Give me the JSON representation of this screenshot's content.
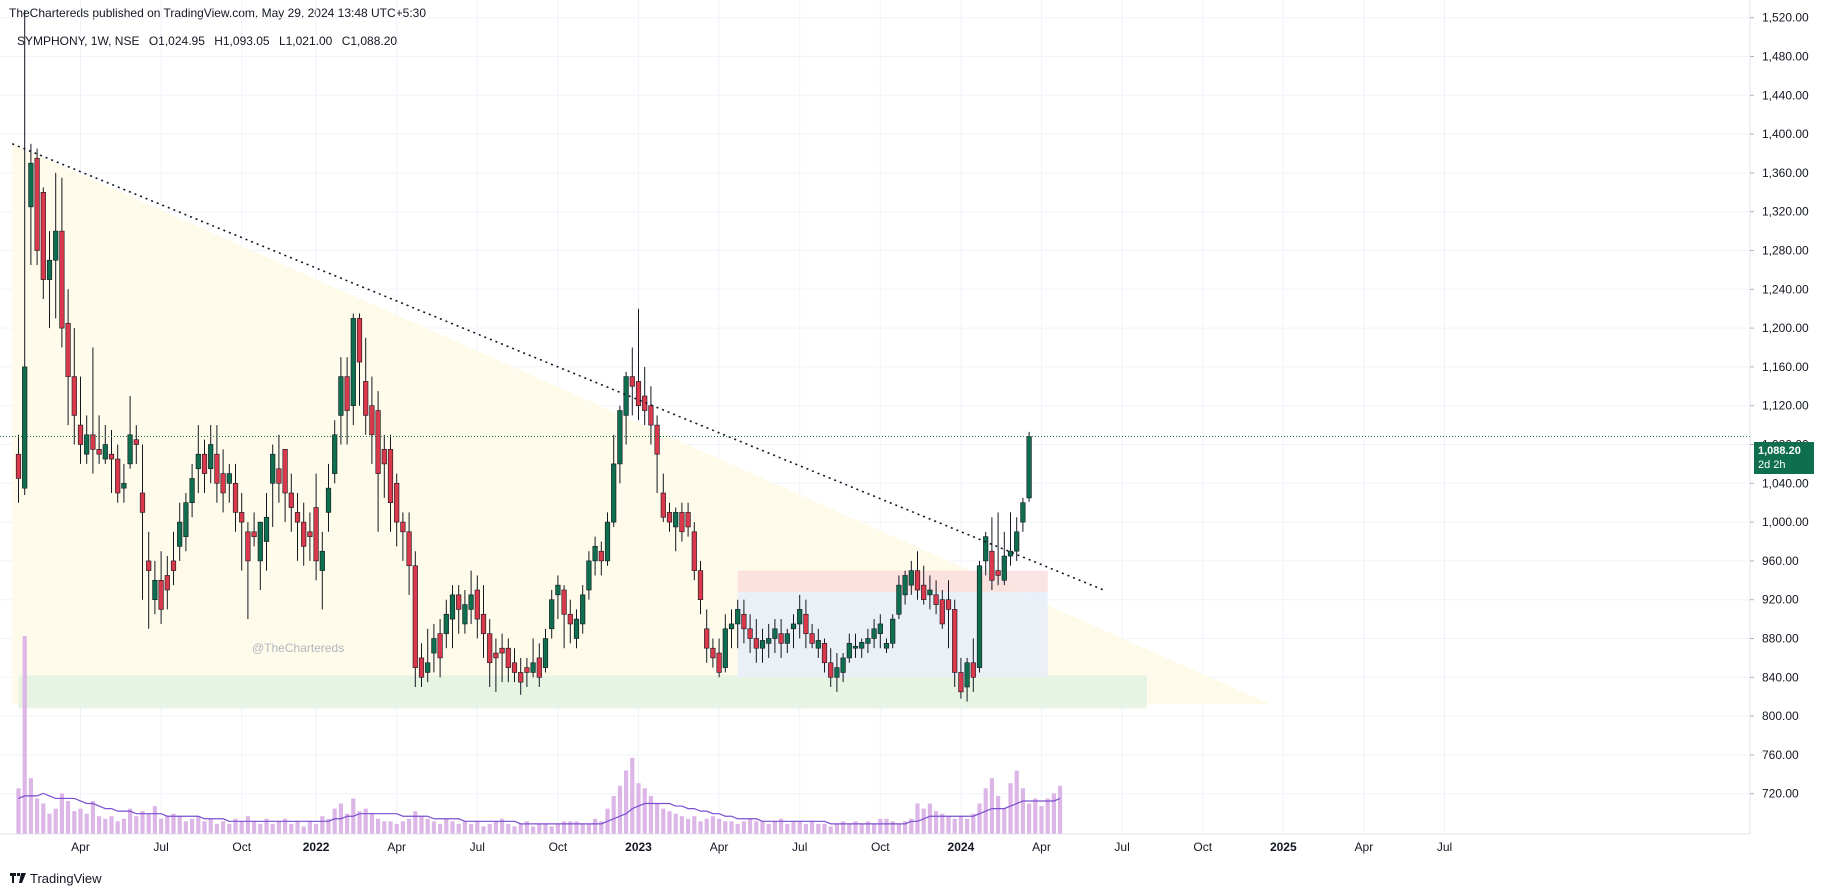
{
  "header": {
    "publisher_line": "TheChartereds published on TradingView.com, May 29, 2024 13:48 UTC+5:30"
  },
  "legend": {
    "symbol": "SYMPHONY, 1W, NSE",
    "open": "O1,024.95",
    "high": "H1,093.05",
    "low": "L1,021.00",
    "close": "C1,088.20"
  },
  "watermark": "@TheChartereds",
  "last_price": {
    "value": "1,088.20",
    "countdown": "2d 2h"
  },
  "footer": {
    "brand": "TradingView"
  },
  "colors": {
    "up": "#0f6e4e",
    "down": "#d9394b",
    "wick": "#131722",
    "volume": "#dcb6e6",
    "volume_ma": "#7b4fcf",
    "zone_green": "#e3f2e2",
    "zone_blue": "#e8ecf8",
    "zone_red": "#fadcdc",
    "triangle_fill": "#fffbeb",
    "grid": "#f0f3fa",
    "last_line": "#0f6e4e"
  },
  "chart_data": {
    "type": "candlestick",
    "symbol": "SYMPHONY",
    "interval": "1W",
    "exchange": "NSE",
    "y_axis": {
      "ticks": [
        "720.00",
        "760.00",
        "800.00",
        "840.00",
        "880.00",
        "920.00",
        "960.00",
        "1,000.00",
        "1,040.00",
        "1,080.00",
        "1,120.00",
        "1,160.00",
        "1,200.00",
        "1,240.00",
        "1,280.00",
        "1,320.00",
        "1,360.00",
        "1,400.00",
        "1,440.00",
        "1,480.00",
        "1,520.00"
      ],
      "range": [
        705,
        1528
      ]
    },
    "x_axis": {
      "labels": [
        {
          "text": "Apr",
          "w": 10
        },
        {
          "text": "Jul",
          "w": 23
        },
        {
          "text": "Oct",
          "w": 36
        },
        {
          "text": "2022",
          "w": 48
        },
        {
          "text": "Apr",
          "w": 61
        },
        {
          "text": "Jul",
          "w": 74
        },
        {
          "text": "Oct",
          "w": 87
        },
        {
          "text": "2023",
          "w": 100
        },
        {
          "text": "Apr",
          "w": 113
        },
        {
          "text": "Jul",
          "w": 126
        },
        {
          "text": "Oct",
          "w": 139
        },
        {
          "text": "2024",
          "w": 152
        },
        {
          "text": "Apr",
          "w": 165
        },
        {
          "text": "Jul",
          "w": 178
        },
        {
          "text": "Oct",
          "w": 191
        },
        {
          "text": "2025",
          "w": 204
        },
        {
          "text": "Apr",
          "w": 217
        },
        {
          "text": "Jul",
          "w": 230
        }
      ],
      "year_labels": [
        "2022",
        "2023",
        "2024",
        "2025"
      ]
    },
    "candles": [
      [
        1070,
        1090,
        1020,
        1045
      ],
      [
        1035,
        1528,
        1028,
        1160
      ],
      [
        1325,
        1390,
        1265,
        1370
      ],
      [
        1375,
        1385,
        1265,
        1280
      ],
      [
        1340,
        1345,
        1230,
        1250
      ],
      [
        1250,
        1300,
        1200,
        1270
      ],
      [
        1270,
        1360,
        1210,
        1300
      ],
      [
        1300,
        1355,
        1180,
        1200
      ],
      [
        1205,
        1240,
        1100,
        1150
      ],
      [
        1150,
        1200,
        1080,
        1110
      ],
      [
        1100,
        1150,
        1060,
        1080
      ],
      [
        1070,
        1110,
        1060,
        1090
      ],
      [
        1090,
        1180,
        1050,
        1075
      ],
      [
        1075,
        1110,
        1060,
        1070
      ],
      [
        1065,
        1100,
        1060,
        1080
      ],
      [
        1070,
        1095,
        1030,
        1065
      ],
      [
        1065,
        1080,
        1020,
        1030
      ],
      [
        1035,
        1060,
        1020,
        1040
      ],
      [
        1060,
        1130,
        1055,
        1090
      ],
      [
        1085,
        1100,
        1060,
        1080
      ],
      [
        1030,
        1080,
        920,
        1010
      ],
      [
        960,
        990,
        890,
        950
      ],
      [
        920,
        960,
        905,
        940
      ],
      [
        940,
        970,
        895,
        910
      ],
      [
        945,
        965,
        910,
        930
      ],
      [
        960,
        990,
        935,
        950
      ],
      [
        975,
        1020,
        960,
        1000
      ],
      [
        985,
        1030,
        970,
        1020
      ],
      [
        1020,
        1060,
        1005,
        1045
      ],
      [
        1055,
        1100,
        1030,
        1070
      ],
      [
        1070,
        1085,
        1030,
        1050
      ],
      [
        1055,
        1100,
        1040,
        1080
      ],
      [
        1070,
        1100,
        1020,
        1040
      ],
      [
        1050,
        1075,
        1010,
        1030
      ],
      [
        1040,
        1060,
        1020,
        1050
      ],
      [
        1040,
        1060,
        990,
        1010
      ],
      [
        1010,
        1030,
        950,
        1000
      ],
      [
        990,
        1000,
        900,
        960
      ],
      [
        990,
        1010,
        975,
        985
      ],
      [
        960,
        1000,
        930,
        1000
      ],
      [
        980,
        1030,
        950,
        1005
      ],
      [
        1040,
        1080,
        995,
        1070
      ],
      [
        1055,
        1090,
        1020,
        1040
      ],
      [
        1075,
        1075,
        1000,
        1030
      ],
      [
        1030,
        1050,
        990,
        1015
      ],
      [
        1010,
        1030,
        960,
        1000
      ],
      [
        1000,
        1020,
        955,
        975
      ],
      [
        990,
        1010,
        960,
        985
      ],
      [
        1015,
        1050,
        940,
        960
      ],
      [
        950,
        990,
        910,
        970
      ],
      [
        1010,
        1060,
        990,
        1035
      ],
      [
        1050,
        1105,
        1040,
        1090
      ],
      [
        1110,
        1170,
        1080,
        1150
      ],
      [
        1150,
        1170,
        1080,
        1115
      ],
      [
        1120,
        1215,
        1100,
        1210
      ],
      [
        1210,
        1215,
        1120,
        1165
      ],
      [
        1145,
        1190,
        1090,
        1110
      ],
      [
        1120,
        1150,
        1060,
        1090
      ],
      [
        1115,
        1135,
        990,
        1050
      ],
      [
        1075,
        1090,
        1025,
        1060
      ],
      [
        1075,
        1090,
        990,
        1020
      ],
      [
        1040,
        1050,
        975,
        1000
      ],
      [
        1000,
        1010,
        960,
        990
      ],
      [
        990,
        1010,
        925,
        955
      ],
      [
        955,
        970,
        830,
        850
      ],
      [
        860,
        875,
        830,
        840
      ],
      [
        845,
        890,
        835,
        855
      ],
      [
        865,
        895,
        845,
        880
      ],
      [
        885,
        900,
        840,
        860
      ],
      [
        885,
        920,
        870,
        905
      ],
      [
        900,
        935,
        870,
        925
      ],
      [
        925,
        935,
        885,
        910
      ],
      [
        895,
        930,
        885,
        915
      ],
      [
        910,
        950,
        895,
        925
      ],
      [
        930,
        945,
        880,
        900
      ],
      [
        905,
        935,
        860,
        885
      ],
      [
        885,
        900,
        830,
        855
      ],
      [
        865,
        880,
        825,
        860
      ],
      [
        870,
        885,
        835,
        865
      ],
      [
        870,
        880,
        835,
        850
      ],
      [
        855,
        870,
        835,
        845
      ],
      [
        845,
        860,
        822,
        835
      ],
      [
        850,
        860,
        830,
        845
      ],
      [
        845,
        880,
        840,
        855
      ],
      [
        860,
        875,
        830,
        840
      ],
      [
        850,
        890,
        845,
        880
      ],
      [
        890,
        930,
        880,
        920
      ],
      [
        925,
        945,
        900,
        935
      ],
      [
        930,
        935,
        870,
        905
      ],
      [
        905,
        920,
        875,
        895
      ],
      [
        880,
        910,
        870,
        900
      ],
      [
        895,
        935,
        885,
        925
      ],
      [
        930,
        970,
        920,
        960
      ],
      [
        960,
        985,
        945,
        975
      ],
      [
        970,
        980,
        945,
        960
      ],
      [
        960,
        1010,
        955,
        1000
      ],
      [
        1000,
        1090,
        995,
        1060
      ],
      [
        1060,
        1120,
        1040,
        1115
      ],
      [
        1110,
        1155,
        1080,
        1150
      ],
      [
        1150,
        1180,
        1110,
        1140
      ],
      [
        1145,
        1220,
        1105,
        1120
      ],
      [
        1130,
        1160,
        1100,
        1115
      ],
      [
        1120,
        1140,
        1080,
        1100
      ],
      [
        1100,
        1110,
        1030,
        1070
      ],
      [
        1030,
        1050,
        1000,
        1005
      ],
      [
        1010,
        1020,
        990,
        1000
      ],
      [
        995,
        1015,
        970,
        1010
      ],
      [
        1010,
        1020,
        980,
        990
      ],
      [
        1010,
        1020,
        985,
        995
      ],
      [
        990,
        1000,
        940,
        950
      ],
      [
        950,
        960,
        905,
        920
      ],
      [
        890,
        910,
        855,
        870
      ],
      [
        870,
        880,
        850,
        860
      ],
      [
        865,
        880,
        840,
        845
      ],
      [
        850,
        905,
        845,
        890
      ],
      [
        890,
        910,
        870,
        895
      ],
      [
        895,
        920,
        870,
        910
      ],
      [
        905,
        920,
        875,
        890
      ],
      [
        890,
        905,
        865,
        880
      ],
      [
        880,
        900,
        855,
        870
      ],
      [
        870,
        890,
        855,
        878
      ],
      [
        875,
        895,
        860,
        880
      ],
      [
        880,
        900,
        865,
        890
      ],
      [
        885,
        900,
        860,
        875
      ],
      [
        875,
        890,
        865,
        885
      ],
      [
        890,
        905,
        870,
        895
      ],
      [
        895,
        925,
        880,
        910
      ],
      [
        905,
        920,
        870,
        885
      ],
      [
        885,
        895,
        870,
        875
      ],
      [
        870,
        890,
        860,
        878
      ],
      [
        875,
        880,
        845,
        855
      ],
      [
        855,
        870,
        830,
        840
      ],
      [
        840,
        865,
        825,
        850
      ],
      [
        845,
        865,
        835,
        860
      ],
      [
        860,
        885,
        855,
        875
      ],
      [
        870,
        885,
        860,
        872
      ],
      [
        870,
        880,
        860,
        876
      ],
      [
        875,
        890,
        865,
        880
      ],
      [
        880,
        900,
        870,
        890
      ],
      [
        885,
        905,
        870,
        895
      ],
      [
        870,
        880,
        865,
        875
      ],
      [
        875,
        905,
        870,
        900
      ],
      [
        905,
        945,
        900,
        935
      ],
      [
        925,
        950,
        915,
        945
      ],
      [
        935,
        960,
        925,
        950
      ],
      [
        950,
        970,
        920,
        930
      ],
      [
        935,
        955,
        915,
        920
      ],
      [
        925,
        945,
        910,
        930
      ],
      [
        925,
        940,
        905,
        915
      ],
      [
        920,
        930,
        890,
        895
      ],
      [
        920,
        940,
        870,
        910
      ],
      [
        910,
        920,
        830,
        845
      ],
      [
        845,
        860,
        818,
        825
      ],
      [
        830,
        860,
        815,
        855
      ],
      [
        855,
        880,
        825,
        840
      ],
      [
        850,
        960,
        845,
        955
      ],
      [
        960,
        990,
        945,
        985
      ],
      [
        970,
        1005,
        930,
        940
      ],
      [
        950,
        1010,
        935,
        945
      ],
      [
        940,
        990,
        935,
        965
      ],
      [
        965,
        1010,
        955,
        970
      ],
      [
        970,
        1005,
        960,
        990
      ],
      [
        1000,
        1025,
        990,
        1020
      ],
      [
        1024.95,
        1093.05,
        1021,
        1088.2
      ]
    ],
    "volume": [
      0.18,
      0.78,
      0.22,
      0.14,
      0.12,
      0.08,
      0.1,
      0.16,
      0.13,
      0.09,
      0.1,
      0.08,
      0.13,
      0.07,
      0.06,
      0.07,
      0.05,
      0.06,
      0.1,
      0.07,
      0.09,
      0.08,
      0.11,
      0.06,
      0.07,
      0.08,
      0.07,
      0.05,
      0.06,
      0.07,
      0.05,
      0.06,
      0.04,
      0.05,
      0.04,
      0.06,
      0.05,
      0.07,
      0.05,
      0.04,
      0.06,
      0.04,
      0.05,
      0.06,
      0.04,
      0.05,
      0.03,
      0.05,
      0.04,
      0.07,
      0.06,
      0.1,
      0.12,
      0.08,
      0.14,
      0.09,
      0.1,
      0.08,
      0.06,
      0.05,
      0.05,
      0.04,
      0.05,
      0.06,
      0.09,
      0.07,
      0.06,
      0.05,
      0.04,
      0.06,
      0.05,
      0.04,
      0.05,
      0.04,
      0.05,
      0.03,
      0.04,
      0.05,
      0.06,
      0.04,
      0.03,
      0.04,
      0.05,
      0.03,
      0.04,
      0.04,
      0.03,
      0.04,
      0.05,
      0.05,
      0.05,
      0.04,
      0.04,
      0.06,
      0.05,
      0.1,
      0.15,
      0.19,
      0.25,
      0.3,
      0.2,
      0.18,
      0.15,
      0.12,
      0.1,
      0.09,
      0.08,
      0.07,
      0.06,
      0.07,
      0.05,
      0.06,
      0.07,
      0.06,
      0.05,
      0.05,
      0.04,
      0.05,
      0.06,
      0.05,
      0.05,
      0.04,
      0.05,
      0.06,
      0.04,
      0.05,
      0.05,
      0.04,
      0.05,
      0.04,
      0.04,
      0.03,
      0.04,
      0.05,
      0.04,
      0.05,
      0.04,
      0.05,
      0.04,
      0.06,
      0.06,
      0.05,
      0.04,
      0.05,
      0.06,
      0.12,
      0.1,
      0.12,
      0.09,
      0.08,
      0.07,
      0.06,
      0.07,
      0.06,
      0.08,
      0.12,
      0.18,
      0.22,
      0.15,
      0.1,
      0.2,
      0.25,
      0.18,
      0.12,
      0.14,
      0.11,
      0.14,
      0.16,
      0.19
    ],
    "volume_ma": [
      0.14,
      0.15,
      0.15,
      0.15,
      0.16,
      0.15,
      0.14,
      0.14,
      0.14,
      0.14,
      0.13,
      0.12,
      0.12,
      0.11,
      0.1,
      0.1,
      0.09,
      0.09,
      0.09,
      0.08,
      0.08,
      0.08,
      0.08,
      0.08,
      0.07,
      0.07,
      0.07,
      0.07,
      0.07,
      0.07,
      0.06,
      0.06,
      0.06,
      0.06,
      0.05,
      0.05,
      0.05,
      0.05,
      0.05,
      0.05,
      0.05,
      0.05,
      0.05,
      0.05,
      0.05,
      0.05,
      0.05,
      0.05,
      0.05,
      0.05,
      0.05,
      0.06,
      0.06,
      0.07,
      0.07,
      0.08,
      0.08,
      0.08,
      0.08,
      0.08,
      0.08,
      0.08,
      0.07,
      0.07,
      0.07,
      0.07,
      0.07,
      0.06,
      0.06,
      0.06,
      0.06,
      0.06,
      0.05,
      0.05,
      0.05,
      0.05,
      0.05,
      0.05,
      0.05,
      0.05,
      0.05,
      0.04,
      0.04,
      0.04,
      0.04,
      0.04,
      0.04,
      0.04,
      0.04,
      0.04,
      0.04,
      0.04,
      0.04,
      0.04,
      0.04,
      0.05,
      0.06,
      0.07,
      0.08,
      0.1,
      0.11,
      0.12,
      0.12,
      0.12,
      0.12,
      0.12,
      0.11,
      0.11,
      0.1,
      0.1,
      0.09,
      0.09,
      0.08,
      0.08,
      0.07,
      0.07,
      0.06,
      0.06,
      0.06,
      0.06,
      0.05,
      0.05,
      0.05,
      0.05,
      0.05,
      0.05,
      0.05,
      0.05,
      0.05,
      0.05,
      0.05,
      0.04,
      0.04,
      0.04,
      0.04,
      0.04,
      0.04,
      0.04,
      0.04,
      0.04,
      0.04,
      0.04,
      0.04,
      0.04,
      0.05,
      0.05,
      0.06,
      0.07,
      0.07,
      0.07,
      0.07,
      0.07,
      0.07,
      0.07,
      0.07,
      0.08,
      0.09,
      0.1,
      0.1,
      0.1,
      0.11,
      0.12,
      0.13,
      0.13,
      0.13,
      0.13,
      0.13,
      0.13,
      0.14
    ],
    "annotations": {
      "trendline": {
        "w0": -1,
        "p0": 1390,
        "w1": 175,
        "p1": 930,
        "style": "dotted"
      },
      "triangle_fill": [
        [
          -1,
          1390
        ],
        [
          202,
          812
        ],
        [
          202,
          812
        ],
        [
          -1,
          812
        ]
      ],
      "support_zone": {
        "w0": 0,
        "w1": 182,
        "p0": 808,
        "p1": 842
      },
      "consolidation_box": {
        "w0": 116,
        "w1": 166,
        "p0": 840,
        "p1": 928
      },
      "resistance_box": {
        "w0": 116,
        "w1": 166,
        "p0": 928,
        "p1": 950
      },
      "last_price_line": 1088.2
    }
  }
}
